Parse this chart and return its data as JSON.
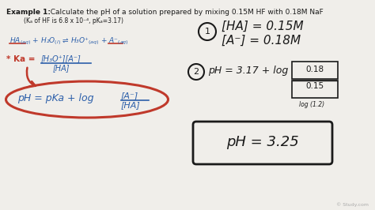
{
  "bg_color": "#f0eeea",
  "title_bold": "Example 1:",
  "title_rest": "  Calculate the pH of a solution prepared by mixing 0.15M HF with 0.18M NaF",
  "subtitle": "(Kₐ of HF is 6.8 x 10⁻⁴, pKₐ=3.17)",
  "red_color": "#c0392b",
  "blue_color": "#2c5faa",
  "dark_color": "#1a1a1a",
  "gray_color": "#888888",
  "watermark": "© Study.com",
  "figw": 4.74,
  "figh": 2.66,
  "dpi": 100
}
